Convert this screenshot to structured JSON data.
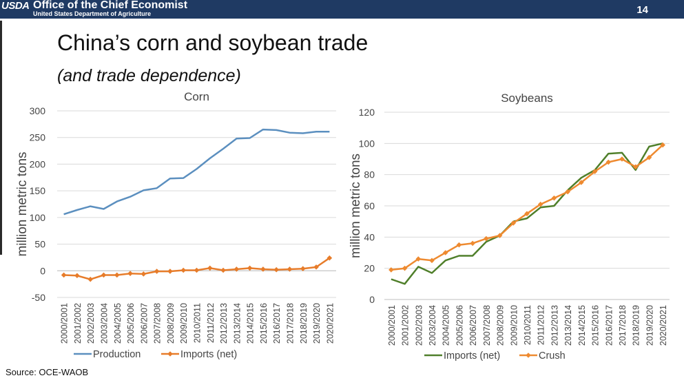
{
  "header": {
    "logo": "USDA",
    "office": "Office of the Chief Economist",
    "department": "United States Department of Agriculture",
    "page_number": "14"
  },
  "slide": {
    "title": "China’s corn and soybean trade",
    "subtitle": "(and trade dependence)",
    "source": "Source: OCE-WAOB"
  },
  "colors": {
    "banner": "#1f3a63",
    "production": "#5b8fbf",
    "imports_corn": "#e77c2a",
    "imports_soy": "#4f7f2a",
    "crush": "#ee8a30",
    "grid": "#d9d9d9"
  },
  "chart_data": [
    {
      "type": "line",
      "title": "Corn",
      "xlabel": "",
      "ylabel": "million metric tons",
      "ylim": [
        -50,
        300
      ],
      "yticks": [
        -50,
        0,
        50,
        100,
        150,
        200,
        250,
        300
      ],
      "grid": true,
      "legend": "bottom",
      "categories": [
        "2000/2001",
        "2001/2002",
        "2002/2003",
        "2003/2004",
        "2004/2005",
        "2005/2006",
        "2006/2007",
        "2007/2008",
        "2008/2009",
        "2009/2010",
        "2010/2011",
        "2011/2012",
        "2012/2013",
        "2013/2014",
        "2014/2015",
        "2015/2016",
        "2016/2017",
        "2017/2018",
        "2018/2019",
        "2019/2020",
        "2020/2021"
      ],
      "series": [
        {
          "name": "Production",
          "color": "#5b8fbf",
          "marker": "none",
          "values": [
            106,
            114,
            121,
            116,
            130,
            139,
            151,
            155,
            173,
            174,
            191,
            211,
            229,
            248,
            249,
            265,
            264,
            259,
            258,
            261,
            261
          ]
        },
        {
          "name": "Imports (net)",
          "color": "#e77c2a",
          "marker": "diamond",
          "values": [
            -8,
            -9,
            -16,
            -8,
            -8,
            -5,
            -6,
            -1,
            -1,
            1,
            1,
            5,
            1,
            3,
            5,
            3,
            2,
            3,
            4,
            7,
            24
          ]
        }
      ]
    },
    {
      "type": "line",
      "title": "Soybeans",
      "xlabel": "",
      "ylabel": "million metric tons",
      "ylim": [
        0,
        120
      ],
      "yticks": [
        0,
        20,
        40,
        60,
        80,
        100,
        120
      ],
      "grid": true,
      "legend": "bottom",
      "categories": [
        "2000/2001",
        "2001/2002",
        "2002/2003",
        "2003/2004",
        "2004/2005",
        "2005/2006",
        "2006/2007",
        "2007/2008",
        "2008/2009",
        "2009/2010",
        "2010/2011",
        "2011/2012",
        "2012/2013",
        "2013/2014",
        "2014/2015",
        "2015/2016",
        "2016/2017",
        "2017/2018",
        "2018/2019",
        "2019/2020",
        "2020/2021"
      ],
      "series": [
        {
          "name": "Imports (net)",
          "color": "#4f7f2a",
          "marker": "none",
          "values": [
            13,
            10,
            21,
            17,
            25,
            28,
            28,
            37,
            41,
            50,
            52,
            59,
            60,
            70,
            78,
            83,
            93.5,
            94,
            83,
            98,
            100
          ]
        },
        {
          "name": "Crush",
          "color": "#ee8a30",
          "marker": "diamond",
          "values": [
            19,
            20,
            26,
            25,
            30,
            35,
            36,
            39,
            41,
            49,
            55,
            61,
            65,
            69,
            75,
            82,
            88,
            90,
            85,
            91,
            99
          ]
        }
      ]
    }
  ]
}
